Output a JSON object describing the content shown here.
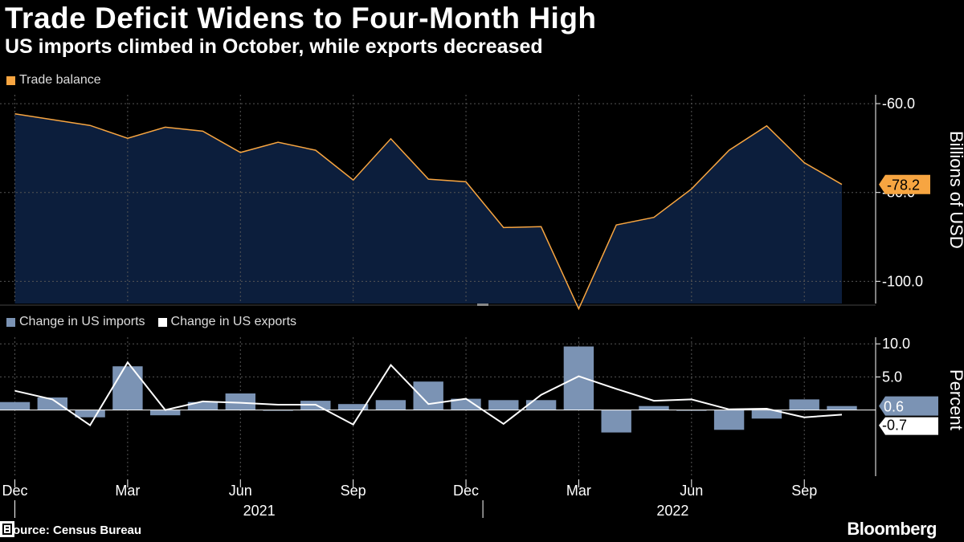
{
  "title": "Trade Deficit Widens to Four-Month High",
  "subtitle": "US imports climbed in October, while exports decreased",
  "source": "Source: Census Bureau",
  "brand": "Bloomberg",
  "colors": {
    "balance": "#f7a541",
    "area": "#0c1e3c",
    "imports": "#7b93b4",
    "exports": "#ffffff",
    "grid": "#555555"
  },
  "chart_data": [
    {
      "type": "area",
      "title": "Trade Deficit Widens to Four-Month High",
      "legend": [
        "Trade balance"
      ],
      "ylabel": "Billions of USD",
      "ylim": [
        -105,
        -58
      ],
      "yticks": [
        -60.0,
        -80.0,
        -100.0
      ],
      "ytick_labels": [
        "-60.0",
        "-80.0",
        "-100.0"
      ],
      "last_value_label": "-78.2",
      "x": [
        "2020-12",
        "2021-01",
        "2021-02",
        "2021-03",
        "2021-04",
        "2021-05",
        "2021-06",
        "2021-07",
        "2021-08",
        "2021-09",
        "2021-10",
        "2021-11",
        "2021-12",
        "2022-01",
        "2022-02",
        "2022-03",
        "2022-04",
        "2022-05",
        "2022-06",
        "2022-07",
        "2022-08",
        "2022-09",
        "2022-10"
      ],
      "series": [
        {
          "name": "Trade balance",
          "values": [
            -62.3,
            -63.6,
            -64.9,
            -67.8,
            -65.3,
            -66.2,
            -71.0,
            -68.7,
            -70.5,
            -77.2,
            -67.9,
            -77.0,
            -77.6,
            -87.9,
            -87.7,
            -106.2,
            -87.3,
            -85.6,
            -79.2,
            -70.5,
            -65.0,
            -73.3,
            -78.2
          ]
        }
      ]
    },
    {
      "type": "bar",
      "legend": [
        "Change in US imports",
        "Change in US exports"
      ],
      "ylabel": "Percent",
      "ylim": [
        -10,
        11
      ],
      "yticks": [
        10.0,
        5.0
      ],
      "ytick_labels": [
        "10.0",
        "5.0"
      ],
      "last_value_labels": [
        "0.6",
        "-0.7"
      ],
      "x": [
        "2020-12",
        "2021-01",
        "2021-02",
        "2021-03",
        "2021-04",
        "2021-05",
        "2021-06",
        "2021-07",
        "2021-08",
        "2021-09",
        "2021-10",
        "2021-11",
        "2021-12",
        "2022-01",
        "2022-02",
        "2022-03",
        "2022-04",
        "2022-05",
        "2022-06",
        "2022-07",
        "2022-08",
        "2022-09",
        "2022-10"
      ],
      "x_tick_labels": [
        "Dec",
        "Mar",
        "Jun",
        "Sep",
        "Dec",
        "Mar",
        "Jun",
        "Sep"
      ],
      "x_year_labels": [
        "2021",
        "2022"
      ],
      "series": [
        {
          "name": "Change in US imports",
          "type": "bar",
          "values": [
            1.2,
            1.9,
            -1.1,
            6.6,
            -0.8,
            1.2,
            2.5,
            -0.1,
            1.4,
            0.9,
            1.5,
            4.3,
            1.7,
            1.5,
            1.5,
            9.6,
            -3.4,
            0.6,
            -0.1,
            -3.0,
            -1.3,
            1.6,
            0.6
          ]
        },
        {
          "name": "Change in US exports",
          "type": "line",
          "values": [
            2.9,
            1.6,
            -2.3,
            7.2,
            0.0,
            1.3,
            1.1,
            0.8,
            0.8,
            -2.2,
            6.8,
            0.9,
            1.7,
            -2.1,
            2.3,
            5.1,
            3.2,
            1.4,
            1.6,
            0.1,
            0.2,
            -1.1,
            -0.7
          ]
        }
      ]
    }
  ],
  "legend_labels": {
    "balance": "Trade balance",
    "imports": "Change in US imports",
    "exports": "Change in US exports"
  }
}
